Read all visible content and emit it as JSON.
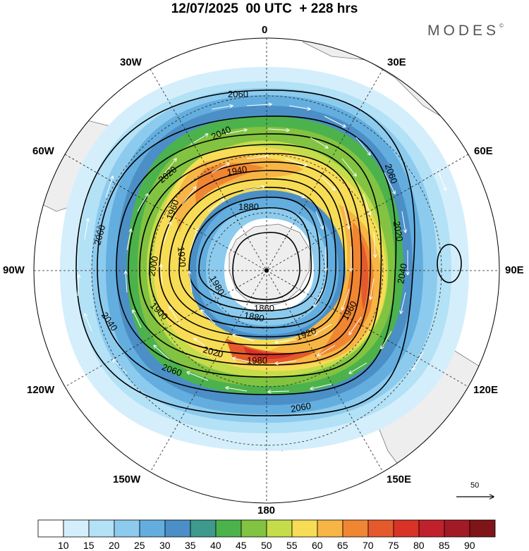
{
  "title": "12/07/2025  00 UTC  + 228 hrs",
  "brand": "MODES",
  "brand_mark": "©",
  "longitude_labels": {
    "lon0": "0",
    "lon30e": "30E",
    "lon60e": "60E",
    "lon90e": "90E",
    "lon120e": "120E",
    "lon150e": "150E",
    "lon180": "180",
    "lon150w": "150W",
    "lon120w": "120W",
    "lon90w": "90W",
    "lon60w": "60W",
    "lon30w": "30W"
  },
  "contour_labels": {
    "c2060a": "2060",
    "c2060b": "2060",
    "c2060c": "2060",
    "c2060d": "2060",
    "c2060e": "2060",
    "c2040a": "2040",
    "c2040b": "2040",
    "c2040c": "2040",
    "c2020a": "2020",
    "c2020b": "2020",
    "c2020c": "2020",
    "c2000a": "2000",
    "c1980a": "1980",
    "c1980b": "1980",
    "c1960a": "1960",
    "c1960b": "1960",
    "c1940a": "1940",
    "c1920a": "1920",
    "c1920b": "1920",
    "c1900a": "1900",
    "c1880a": "1880",
    "c1880b": "1880",
    "c1860a": "1860"
  },
  "reference_vector": "50",
  "colorbar": {
    "labels": [
      "10",
      "15",
      "20",
      "25",
      "30",
      "35",
      "40",
      "45",
      "50",
      "55",
      "60",
      "65",
      "70",
      "75",
      "80",
      "85",
      "90"
    ],
    "colors": [
      "#ffffff",
      "#d4effb",
      "#b3e1f6",
      "#8ccbee",
      "#63aede",
      "#4b8fc6",
      "#3d9a8c",
      "#4cb24c",
      "#82c341",
      "#c5dc4b",
      "#f7dc55",
      "#f6b544",
      "#f08632",
      "#e55a2c",
      "#d93227",
      "#c0212a",
      "#a11a25",
      "#7f1519"
    ]
  },
  "colors": {
    "land": "#eeeeee",
    "coast": "#777777",
    "contour": "#000000",
    "vector": "#ffffff"
  }
}
